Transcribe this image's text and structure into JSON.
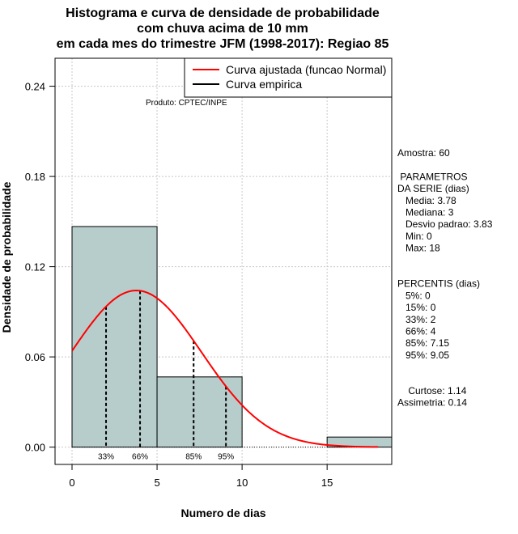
{
  "chart_data": {
    "type": "bar",
    "title_lines": [
      "Histograma e curva de densidade de probabilidade",
      "com chuva acima de 10 mm",
      "em cada mes do trimestre JFM (1998-2017): Regiao 85"
    ],
    "xlabel": "Numero de dias",
    "ylabel": "Densidade de probabilidade",
    "xlim": [
      -1,
      18.8
    ],
    "ylim": [
      -0.0115,
      0.2586
    ],
    "xticks": [
      0,
      5,
      10,
      15
    ],
    "xtick_labels": [
      "0",
      "5",
      "10",
      "15"
    ],
    "yticks": [
      0.0,
      0.06,
      0.12,
      0.18,
      0.24
    ],
    "ytick_labels": [
      "0.00",
      "0.06",
      "0.12",
      "0.18",
      "0.24"
    ],
    "grid": true,
    "bars": [
      {
        "x0": 0,
        "x1": 5,
        "density": 0.1467
      },
      {
        "x0": 5,
        "x1": 10,
        "density": 0.0467
      },
      {
        "x0": 10,
        "x1": 15,
        "density": 0.0
      },
      {
        "x0": 15,
        "x1": 20,
        "density": 0.0067
      }
    ],
    "bar_color": "#b7cdcc",
    "normal_curve": {
      "mean": 3.78,
      "sd": 3.83,
      "x_from": 0,
      "x_to": 18,
      "color": "#ff0000"
    },
    "percentile_lines": [
      {
        "label": "33%",
        "x": 2
      },
      {
        "label": "66%",
        "x": 4
      },
      {
        "label": "85%",
        "x": 7.15
      },
      {
        "label": "95%",
        "x": 9.05
      }
    ],
    "legend": {
      "position": "top-right",
      "entries": [
        {
          "label": "Curva ajustada (funcao Normal)",
          "color": "#ff0000"
        },
        {
          "label": "Curva empirica",
          "color": "#000000"
        }
      ]
    },
    "credit": "Produto: CPTEC/INPE",
    "stats_panel": [
      "Amostra: 60",
      "",
      " PARAMETROS",
      "DA SERIE (dias)",
      "   Media: 3.78",
      "   Mediana: 3",
      "   Desvio padrao: 3.83",
      "   Min: 0",
      "   Max: 18",
      "",
      "",
      "PERCENTIS (dias)",
      "   5%: 0",
      "   15%: 0",
      "   33%: 2",
      "   66%: 4",
      "   85%: 7.15",
      "   95%: 9.05",
      "",
      "",
      "    Curtose: 1.14",
      "Assimetria: 0.14"
    ]
  }
}
